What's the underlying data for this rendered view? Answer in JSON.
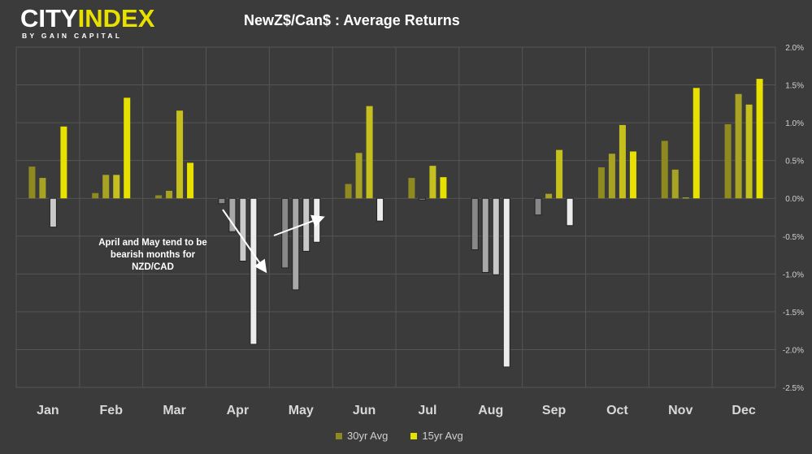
{
  "logo": {
    "main_left": "CITY",
    "main_right": "INDEX",
    "sub": "BY GAIN CAPITAL"
  },
  "annotation": "April and May tend to be bearish months for NZD/CAD",
  "colors": {
    "background": "#3b3b3b",
    "grid": "#555555",
    "pos": [
      "#8f8a1f",
      "#a8a323",
      "#c6c01f",
      "#e8e100"
    ],
    "neg": [
      "#888888",
      "#a8a8a8",
      "#c8c8c8",
      "#ececec"
    ],
    "legend_30yr": "#8f8a1f",
    "legend_15yr": "#e8e100"
  },
  "chart_data": {
    "type": "bar",
    "title": "NewZ$/Can$ : Average Returns",
    "categories": [
      "Jan",
      "Feb",
      "Mar",
      "Apr",
      "May",
      "Jun",
      "Jul",
      "Aug",
      "Sep",
      "Oct",
      "Nov",
      "Dec"
    ],
    "series_per_category": 4,
    "values": [
      [
        0.42,
        0.27,
        -0.38,
        0.95
      ],
      [
        0.07,
        0.31,
        0.31,
        1.33
      ],
      [
        0.04,
        0.1,
        1.16,
        0.47
      ],
      [
        -0.07,
        -0.44,
        -0.83,
        -1.93
      ],
      [
        -0.92,
        -1.21,
        -0.7,
        -0.58
      ],
      [
        0.19,
        0.6,
        1.22,
        -0.3
      ],
      [
        0.27,
        -0.02,
        0.43,
        0.28
      ],
      [
        -0.68,
        -0.98,
        -1.01,
        -2.23
      ],
      [
        -0.22,
        0.06,
        0.64,
        -0.36
      ],
      [
        0.41,
        0.59,
        0.97,
        0.62
      ],
      [
        0.76,
        0.38,
        0.01,
        1.46
      ],
      [
        0.98,
        1.38,
        1.24,
        1.58
      ]
    ],
    "ylim": [
      -2.5,
      2.0
    ],
    "yticks": [
      "2.0%",
      "1.5%",
      "1.0%",
      "0.5%",
      "0.0%",
      "-0.5%",
      "-1.0%",
      "-1.5%",
      "-2.0%",
      "-2.5%"
    ],
    "legend": [
      {
        "name": "30yr Avg"
      },
      {
        "name": "15yr Avg"
      }
    ],
    "legend_position": "bottom",
    "grid": true
  }
}
